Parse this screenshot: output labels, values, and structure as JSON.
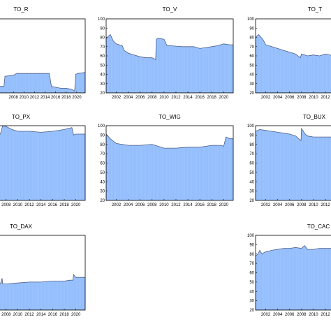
{
  "chart_data": [
    {
      "type": "area",
      "title": "TO_R",
      "ylim": [
        20,
        100
      ],
      "xlim": [
        2005.2,
        2021.6
      ],
      "yticks": [],
      "xticks": [
        2008,
        2010,
        2012,
        2014,
        2016,
        2018,
        2020
      ],
      "series": [
        {
          "x": [
            2005.2,
            2006.2,
            2006.4,
            2008.0,
            2008.6,
            2010.0,
            2011.6,
            2014.8,
            2015.2,
            2016.0,
            2017.0,
            2018.0,
            2019.0,
            2019.6,
            2019.8,
            2020.2,
            2021.6
          ],
          "y": [
            27,
            27,
            38,
            39,
            41,
            41,
            41,
            41,
            27,
            26,
            25,
            25,
            24,
            22,
            40,
            41,
            42
          ]
        }
      ]
    },
    {
      "type": "area",
      "title": "TO_V",
      "ylim": [
        20,
        100
      ],
      "xlim": [
        2000.3,
        2021.6
      ],
      "yticks": [
        20,
        30,
        40,
        50,
        60,
        70,
        80,
        90,
        100
      ],
      "xticks": [
        2002,
        2004,
        2006,
        2008,
        2010,
        2012,
        2014,
        2016,
        2018,
        2020
      ],
      "series": [
        {
          "x": [
            2000.3,
            2001.0,
            2001.5,
            2002.0,
            2003.0,
            2003.3,
            2004.0,
            2005.0,
            2006.0,
            2007.0,
            2008.0,
            2008.6,
            2008.7,
            2009.0,
            2010.0,
            2010.5,
            2011.0,
            2013.0,
            2015.0,
            2016.0,
            2017.0,
            2018.0,
            2019.0,
            2020.0,
            2021.0,
            2021.6
          ],
          "y": [
            79,
            83,
            76,
            73,
            71,
            66,
            63,
            61,
            59,
            58,
            58,
            56,
            78,
            79,
            78,
            71,
            71,
            70,
            70,
            68,
            69,
            70,
            71,
            73,
            72,
            72
          ]
        }
      ]
    },
    {
      "type": "area",
      "title": "TO_T",
      "ylim": [
        20,
        100
      ],
      "xlim": [
        2000.3,
        2013.4
      ],
      "yticks": [
        20,
        30,
        40,
        50,
        60,
        70,
        80,
        90,
        100
      ],
      "xticks": [
        2002,
        2004,
        2006,
        2008,
        2010,
        2012
      ],
      "series": [
        {
          "x": [
            2000.3,
            2000.8,
            2001.5,
            2002.0,
            2003.0,
            2004.0,
            2005.0,
            2006.0,
            2007.0,
            2007.8,
            2008.0,
            2009.0,
            2010.0,
            2011.0,
            2012.0,
            2013.4
          ],
          "y": [
            80,
            83,
            78,
            72,
            70,
            68,
            66,
            64,
            62,
            58,
            62,
            60,
            61,
            60,
            62,
            60
          ]
        }
      ]
    },
    {
      "type": "area",
      "title": "TO_PX",
      "ylim": [
        20,
        100
      ],
      "xlim": [
        2006.7,
        2021.6
      ],
      "yticks": [],
      "xticks": [
        2008,
        2010,
        2012,
        2014,
        2016,
        2018,
        2020
      ],
      "series": [
        {
          "x": [
            2006.7,
            2007.0,
            2007.4,
            2008.0,
            2009.0,
            2010.0,
            2012.0,
            2014.0,
            2016.0,
            2018.0,
            2019.3,
            2019.6,
            2020.0,
            2021.6
          ],
          "y": [
            90,
            91,
            100,
            99,
            96,
            94,
            94,
            93,
            94,
            96,
            98,
            90,
            91,
            91
          ]
        }
      ]
    },
    {
      "type": "area",
      "title": "TO_WIG",
      "ylim": [
        20,
        100
      ],
      "xlim": [
        2000.3,
        2021.6
      ],
      "yticks": [
        20,
        30,
        40,
        50,
        60,
        70,
        80,
        90,
        100
      ],
      "xticks": [
        2002,
        2004,
        2006,
        2008,
        2010,
        2012,
        2014,
        2016,
        2018,
        2020
      ],
      "series": [
        {
          "x": [
            2000.3,
            2001.0,
            2002.0,
            2003.0,
            2004.0,
            2006.0,
            2008.0,
            2009.0,
            2010.0,
            2012.0,
            2014.0,
            2016.0,
            2018.0,
            2019.5,
            2020.0,
            2020.4,
            2021.0,
            2021.6
          ],
          "y": [
            91,
            86,
            81,
            80,
            79,
            79,
            80,
            78,
            76,
            76,
            77,
            77,
            79,
            79,
            78,
            88,
            86,
            86
          ]
        }
      ]
    },
    {
      "type": "area",
      "title": "TO_BUX",
      "ylim": [
        20,
        100
      ],
      "xlim": [
        2000.3,
        2013.4
      ],
      "yticks": [
        20,
        30,
        40,
        50,
        60,
        70,
        80,
        90,
        100
      ],
      "xticks": [
        2002,
        2004,
        2006,
        2008,
        2010,
        2012
      ],
      "series": [
        {
          "x": [
            2000.3,
            2001.0,
            2002.0,
            2003.0,
            2004.0,
            2005.0,
            2006.0,
            2007.0,
            2007.9,
            2008.0,
            2008.6,
            2009.0,
            2010.0,
            2011.0,
            2012.0,
            2013.4
          ],
          "y": [
            94,
            96,
            95,
            94,
            93,
            92,
            91,
            89,
            84,
            97,
            91,
            89,
            88,
            88,
            88,
            88
          ]
        }
      ]
    },
    {
      "type": "area",
      "title": "TO_DAX",
      "ylim": [
        20,
        100
      ],
      "xlim": [
        2006.7,
        2021.6
      ],
      "yticks": [],
      "xticks": [
        2008,
        2010,
        2012,
        2014,
        2016,
        2018,
        2020
      ],
      "series": [
        {
          "x": [
            2006.7,
            2007.0,
            2007.3,
            2007.4,
            2008.0,
            2010.0,
            2012.0,
            2014.0,
            2016.0,
            2018.0,
            2019.0,
            2019.5,
            2019.6,
            2020.0,
            2021.6
          ],
          "y": [
            47,
            48,
            54,
            48,
            48,
            49,
            50,
            50,
            51,
            51,
            52,
            52,
            58,
            55,
            55
          ]
        }
      ]
    },
    {
      "type": "area",
      "title": "TO_CAC",
      "ylim": [
        20,
        100
      ],
      "xlim": [
        2000.3,
        2013.4
      ],
      "yticks": [
        20,
        30,
        40,
        50,
        60,
        70,
        80,
        90,
        100
      ],
      "xticks": [
        2002,
        2004,
        2006,
        2008,
        2010,
        2012
      ],
      "series": [
        {
          "x": [
            2000.3,
            2000.7,
            2001.0,
            2001.4,
            2001.8,
            2002.5,
            2003.0,
            2004.0,
            2005.0,
            2006.0,
            2007.0,
            2008.0,
            2008.5,
            2009.0,
            2010.0,
            2011.0,
            2012.0,
            2013.4
          ],
          "y": [
            78,
            80,
            84,
            80,
            82,
            83,
            84,
            85,
            86,
            86,
            87,
            86,
            89,
            85,
            85,
            86,
            86,
            86
          ]
        }
      ]
    }
  ]
}
